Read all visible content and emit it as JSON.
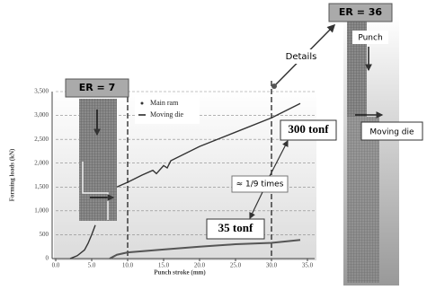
{
  "chart_data": {
    "type": "line",
    "x_label": "Punch stroke (mm)",
    "y_label": "Forming loads (kN)",
    "xlim": [
      0,
      35
    ],
    "xticks": [
      {
        "value": 0,
        "label": "0.0"
      },
      {
        "value": 5,
        "label": "5.0"
      },
      {
        "value": 10,
        "label": "10.0"
      },
      {
        "value": 15,
        "label": "15.0"
      },
      {
        "value": 20,
        "label": "20.0"
      },
      {
        "value": 25,
        "label": "25.0"
      },
      {
        "value": 30,
        "label": "30.0"
      },
      {
        "value": 35,
        "label": "35.0"
      }
    ],
    "ylim": [
      0,
      3500
    ],
    "yticks": [
      0,
      500,
      {
        "value": 1000,
        "label": "1,000"
      },
      {
        "value": 1500,
        "label": "1,500"
      },
      {
        "value": 2000,
        "label": "2,000"
      },
      {
        "value": 2500,
        "label": "2,500"
      },
      {
        "value": 3000,
        "label": "3,000"
      },
      {
        "value": 3500,
        "label": "3,500"
      }
    ],
    "grid": true,
    "legend": "top-left",
    "series": [
      {
        "name": "Main ram",
        "color": "#333333",
        "x": [
          2,
          3,
          4,
          4.5,
          5,
          5.5,
          7,
          8.5,
          10,
          12,
          13.5,
          14,
          15,
          15.5,
          16,
          20,
          25,
          30,
          34
        ],
        "values": [
          0,
          60,
          180,
          320,
          500,
          700,
          null,
          1500,
          1600,
          1750,
          1850,
          1780,
          1950,
          1900,
          2050,
          2350,
          2650,
          2950,
          3250
        ]
      },
      {
        "name": "Moving die",
        "color": "#555555",
        "x": [
          7.5,
          8.5,
          10,
          15,
          20,
          25,
          30,
          34
        ],
        "values": [
          0,
          80,
          130,
          190,
          250,
          300,
          330,
          390
        ]
      }
    ],
    "vlines": [
      10,
      30
    ],
    "annotations": [
      "ER = 7",
      "ER = 36",
      "Punch",
      "Moving die",
      "Details",
      "300 tonf",
      "35 tonf",
      "≈ 1/9 times"
    ]
  }
}
